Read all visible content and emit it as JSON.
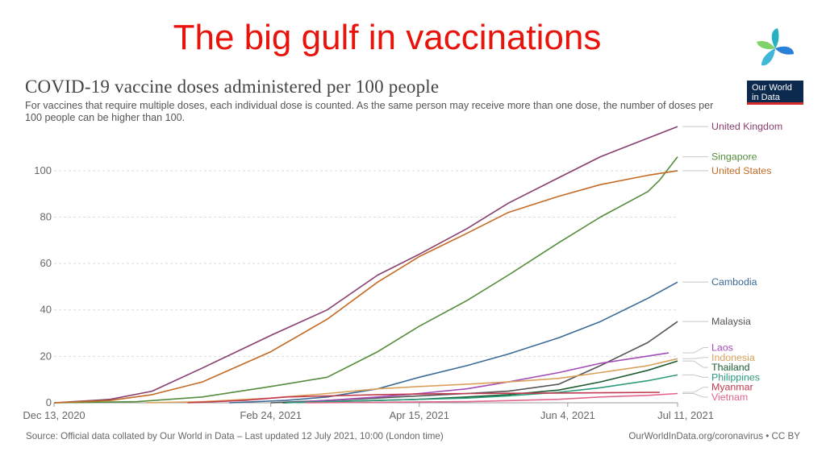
{
  "slide": {
    "title": "The big gulf in vaccinations"
  },
  "badge": {
    "line1": "Our World",
    "line2": "in Data"
  },
  "footer": {
    "source": "Source: Official data collated by Our World in Data – Last updated 12 July 2021, 10:00 (London time)",
    "url": "OurWorldInData.org/coronavirus • CC BY"
  },
  "chart_data": {
    "type": "line",
    "title": "COVID-19 vaccine doses administered per 100 people",
    "subtitle": "For vaccines that require multiple doses, each individual dose is counted. As the same person may receive more than one dose, the number of doses per 100 people can be higher than 100.",
    "xlabel": "",
    "ylabel": "",
    "x_ticks": [
      "Dec 13, 2020",
      "Feb 24, 2021",
      "Apr 15, 2021",
      "Jun 4, 2021",
      "Jul 11, 2021"
    ],
    "x_range": [
      "2020-12-13",
      "2021-07-11"
    ],
    "ylim": [
      0,
      118
    ],
    "y_ticks": [
      0,
      20,
      40,
      60,
      80,
      100
    ],
    "grid": "horizontal-dashed",
    "legend": "right-end labels",
    "series": [
      {
        "name": "United Kingdom",
        "color": "#883e6f",
        "x": [
          "2020-12-13",
          "2021-01-01",
          "2021-01-15",
          "2021-02-01",
          "2021-02-24",
          "2021-03-15",
          "2021-04-01",
          "2021-04-15",
          "2021-05-01",
          "2021-05-15",
          "2021-06-01",
          "2021-06-15",
          "2021-07-01",
          "2021-07-11"
        ],
        "y": [
          0,
          1.5,
          5,
          15,
          29,
          40,
          55,
          64,
          75,
          86,
          97,
          106,
          114,
          119
        ]
      },
      {
        "name": "Singapore",
        "color": "#548c3c",
        "x": [
          "2020-12-13",
          "2021-01-10",
          "2021-02-01",
          "2021-02-24",
          "2021-03-15",
          "2021-04-01",
          "2021-04-15",
          "2021-05-01",
          "2021-05-15",
          "2021-06-01",
          "2021-06-15",
          "2021-07-01",
          "2021-07-05",
          "2021-07-11"
        ],
        "y": [
          0,
          0.5,
          2.5,
          7,
          11,
          22,
          33,
          44,
          55,
          69,
          80,
          91,
          96,
          106
        ]
      },
      {
        "name": "United States",
        "color": "#c36a24",
        "x": [
          "2020-12-13",
          "2021-01-01",
          "2021-01-15",
          "2021-02-01",
          "2021-02-24",
          "2021-03-15",
          "2021-04-01",
          "2021-04-15",
          "2021-05-01",
          "2021-05-15",
          "2021-06-01",
          "2021-06-15",
          "2021-07-01",
          "2021-07-11"
        ],
        "y": [
          0,
          1,
          3.5,
          9,
          22,
          36,
          52,
          63,
          73,
          82,
          89,
          94,
          98,
          100
        ]
      },
      {
        "name": "Cambodia",
        "color": "#3c6a96",
        "x": [
          "2021-02-10",
          "2021-03-01",
          "2021-03-15",
          "2021-04-01",
          "2021-04-15",
          "2021-05-01",
          "2021-05-15",
          "2021-06-01",
          "2021-06-15",
          "2021-07-01",
          "2021-07-11"
        ],
        "y": [
          0,
          1,
          2.5,
          6,
          11,
          16,
          21,
          28,
          35,
          45,
          52
        ]
      },
      {
        "name": "Malaysia",
        "color": "#555555",
        "x": [
          "2021-02-24",
          "2021-03-15",
          "2021-04-01",
          "2021-04-15",
          "2021-05-01",
          "2021-05-15",
          "2021-06-01",
          "2021-06-15",
          "2021-07-01",
          "2021-07-11"
        ],
        "y": [
          0,
          1,
          2,
          3,
          4,
          5,
          8,
          16,
          26,
          35
        ]
      },
      {
        "name": "Laos",
        "color": "#a34bb7",
        "x": [
          "2021-03-01",
          "2021-03-15",
          "2021-04-01",
          "2021-04-15",
          "2021-05-01",
          "2021-05-15",
          "2021-06-01",
          "2021-06-15",
          "2021-07-08"
        ],
        "y": [
          0,
          1,
          2.5,
          4,
          6,
          9,
          13,
          17,
          21.5
        ]
      },
      {
        "name": "Indonesia",
        "color": "#d9a05a",
        "x": [
          "2021-01-13",
          "2021-02-01",
          "2021-02-24",
          "2021-03-15",
          "2021-04-01",
          "2021-04-15",
          "2021-05-01",
          "2021-05-15",
          "2021-06-01",
          "2021-06-15",
          "2021-07-01",
          "2021-07-11"
        ],
        "y": [
          0,
          0.5,
          2,
          4,
          6,
          7,
          8,
          9,
          10.5,
          13,
          16,
          19
        ]
      },
      {
        "name": "Thailand",
        "color": "#1c5c30",
        "x": [
          "2021-02-28",
          "2021-03-15",
          "2021-04-01",
          "2021-04-15",
          "2021-05-01",
          "2021-05-15",
          "2021-06-01",
          "2021-06-15",
          "2021-07-01",
          "2021-07-11"
        ],
        "y": [
          0,
          0.5,
          1,
          1.5,
          2.5,
          3.5,
          5.5,
          9,
          14,
          18
        ]
      },
      {
        "name": "Philippines",
        "color": "#2a9a7a",
        "x": [
          "2021-03-01",
          "2021-03-15",
          "2021-04-01",
          "2021-04-15",
          "2021-05-01",
          "2021-05-15",
          "2021-06-01",
          "2021-06-15",
          "2021-07-01",
          "2021-07-11"
        ],
        "y": [
          0,
          0.5,
          1,
          1.5,
          2,
          3,
          4.5,
          6.5,
          9.5,
          12
        ]
      },
      {
        "name": "Myanmar",
        "color": "#c13a50",
        "x": [
          "2021-01-27",
          "2021-02-15",
          "2021-03-01",
          "2021-04-01",
          "2021-04-15",
          "2021-05-01",
          "2021-06-01",
          "2021-07-05"
        ],
        "y": [
          0,
          1,
          2.5,
          3.5,
          3.8,
          4,
          4.2,
          4.5
        ]
      },
      {
        "name": "Vietnam",
        "color": "#e0678a",
        "x": [
          "2021-03-08",
          "2021-04-01",
          "2021-05-01",
          "2021-06-01",
          "2021-06-15",
          "2021-07-01",
          "2021-07-11"
        ],
        "y": [
          0,
          0.2,
          0.5,
          1.5,
          2.5,
          3.2,
          4
        ]
      }
    ]
  }
}
